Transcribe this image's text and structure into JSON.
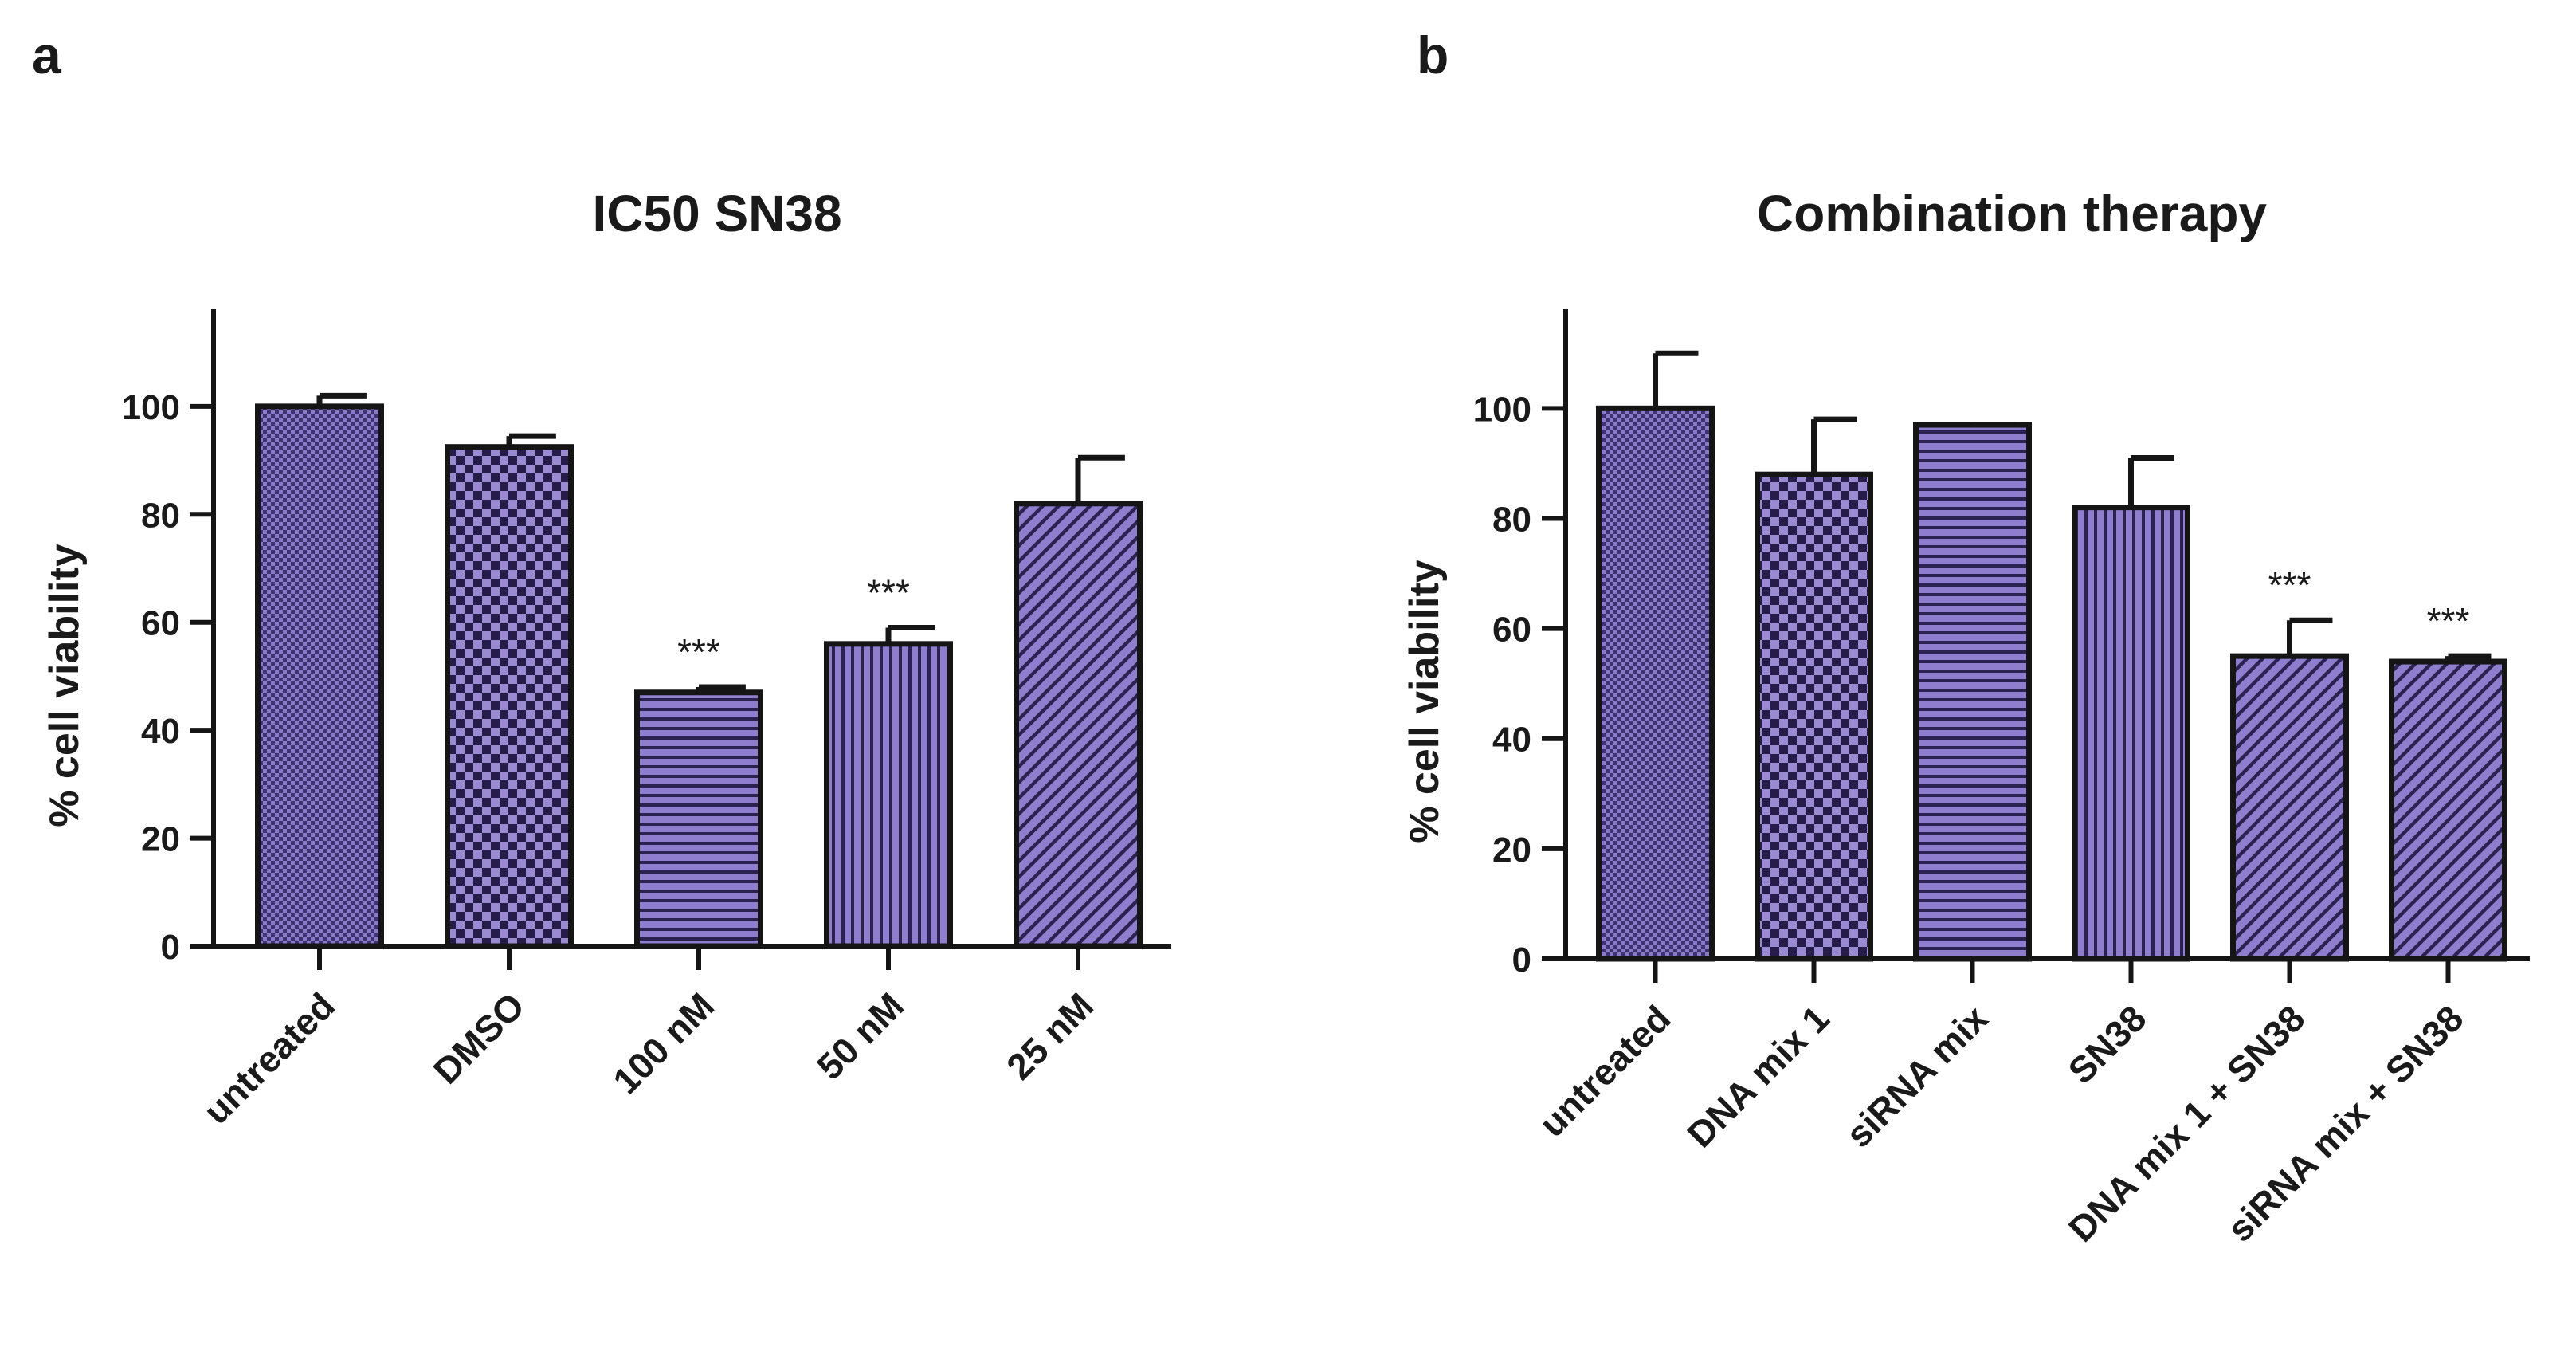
{
  "chart_data": [
    {
      "type": "bar",
      "panel": "a",
      "title": "IC50 SN38",
      "xlabel": "",
      "ylabel": "% cell viability",
      "ylim": [
        0,
        118
      ],
      "yticks": [
        0,
        20,
        40,
        60,
        80,
        100
      ],
      "categories": [
        "untreated",
        "DMSO",
        "100 nM",
        "50 nM",
        "25 nM"
      ],
      "values": [
        100,
        92.5,
        47,
        56,
        82
      ],
      "errors": [
        2,
        2,
        1,
        3,
        8.5
      ],
      "patterns": [
        "fine-checker",
        "checker",
        "horizontal",
        "vertical",
        "diagonal"
      ],
      "significance": [
        "",
        "",
        "***",
        "***",
        ""
      ],
      "bar_color": "#8470c2",
      "edge_color": "#151515"
    },
    {
      "type": "bar",
      "panel": "b",
      "title": "Combination therapy",
      "xlabel": "",
      "ylabel": "% cell viability",
      "ylim": [
        0,
        118
      ],
      "yticks": [
        0,
        20,
        40,
        60,
        80,
        100
      ],
      "categories": [
        "untreated",
        "DNA mix 1",
        "siRNA mix",
        "SN38",
        "DNA mix 1 + SN38",
        "siRNA mix + SN38"
      ],
      "values": [
        100,
        88,
        97,
        82,
        55,
        54
      ],
      "errors": [
        10,
        10,
        0,
        9,
        6.5,
        1
      ],
      "patterns": [
        "fine-checker",
        "checker",
        "horizontal",
        "vertical",
        "diagonal",
        "diagonal"
      ],
      "significance": [
        "",
        "",
        "",
        "",
        "***",
        "***"
      ],
      "bar_color": "#8470c2",
      "edge_color": "#151515"
    }
  ]
}
